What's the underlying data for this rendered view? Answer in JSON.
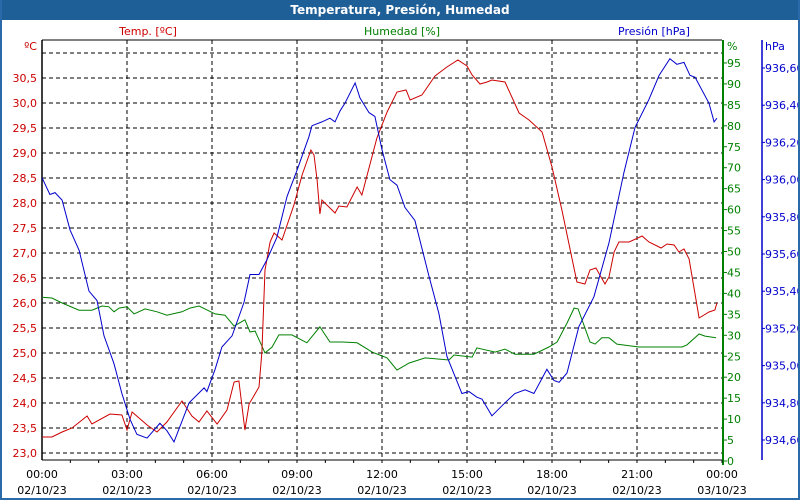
{
  "window": {
    "title": "Temperatura, Presión, Humedad"
  },
  "colors": {
    "temp": "#cc0000",
    "hum": "#008000",
    "pres": "#0000cc",
    "titlebar": "#1f5f97"
  },
  "chart_data": {
    "type": "line",
    "title": "Temperatura, Presión, Humedad",
    "x_unit": "hours since 02/10/23 00:00",
    "xlim": [
      0,
      24
    ],
    "x_ticks": [
      {
        "time": "00:00",
        "date": "02/10/23"
      },
      {
        "time": "03:00",
        "date": "02/10/23"
      },
      {
        "time": "06:00",
        "date": "02/10/23"
      },
      {
        "time": "09:00",
        "date": "02/10/23"
      },
      {
        "time": "12:00",
        "date": "02/10/23"
      },
      {
        "time": "15:00",
        "date": "02/10/23"
      },
      {
        "time": "18:00",
        "date": "02/10/23"
      },
      {
        "time": "21:00",
        "date": "02/10/23"
      },
      {
        "time": "00:00",
        "date": "03/10/23"
      }
    ],
    "axes": {
      "temp": {
        "label": "Temp. [ºC]",
        "unit": "ºC",
        "ticks": [
          "23,0",
          "23,5",
          "24,0",
          "24,5",
          "25,0",
          "25,5",
          "26,0",
          "26,5",
          "27,0",
          "27,5",
          "28,0",
          "28,5",
          "29,0",
          "29,5",
          "30,0",
          "30,5"
        ],
        "range": [
          23.0,
          31.0
        ]
      },
      "hum": {
        "label": "Humedad [%]",
        "unit": "%",
        "ticks": [
          "0",
          "5",
          "10",
          "15",
          "20",
          "25",
          "30",
          "35",
          "40",
          "45",
          "50",
          "55",
          "60",
          "65",
          "70",
          "75",
          "80",
          "85",
          "90",
          "95"
        ],
        "range": [
          0,
          95
        ]
      },
      "pres": {
        "label": "Presión [hPa]",
        "unit": "hPa",
        "ticks": [
          "934,60",
          "934,80",
          "935,00",
          "935,20",
          "935,40",
          "935,60",
          "935,80",
          "936,00",
          "936,20",
          "936,40",
          "936,60"
        ],
        "range": [
          934.6,
          936.6
        ]
      }
    },
    "series": [
      {
        "name": "Temp. [ºC]",
        "axis": "temp",
        "x": [
          0,
          0.35,
          0.71,
          1.06,
          1.59,
          1.76,
          2.4,
          2.82,
          3.0,
          3.18,
          3.71,
          4.06,
          4.41,
          4.94,
          5.29,
          5.54,
          5.82,
          6.18,
          6.53,
          6.78,
          6.95,
          7.16,
          7.31,
          7.66,
          7.76,
          7.87,
          8.05,
          8.19,
          8.47,
          8.89,
          9.18,
          9.49,
          9.6,
          9.71,
          9.81,
          9.88,
          10.34,
          10.48,
          10.76,
          11.12,
          11.29,
          11.82,
          12.18,
          12.53,
          12.85,
          12.99,
          13.41,
          13.87,
          14.29,
          14.68,
          15.0,
          15.18,
          15.46,
          15.71,
          15.88,
          16.34,
          16.84,
          17.19,
          17.65,
          18.0,
          18.35,
          18.88,
          19.16,
          19.34,
          19.55,
          19.87,
          20.01,
          20.19,
          20.36,
          20.72,
          21.18,
          21.42,
          21.85,
          22.06,
          22.31,
          22.48,
          22.66,
          22.84,
          23.19,
          23.54,
          23.75,
          23.82
        ],
        "y": [
          23.32,
          23.32,
          23.42,
          23.5,
          23.74,
          23.58,
          23.78,
          23.76,
          23.46,
          23.82,
          23.56,
          23.42,
          23.62,
          24.04,
          23.74,
          23.62,
          23.84,
          23.58,
          23.86,
          24.42,
          24.44,
          23.46,
          23.98,
          24.32,
          25.02,
          26.66,
          27.22,
          27.4,
          27.26,
          27.96,
          28.56,
          29.06,
          28.96,
          28.46,
          27.78,
          28.06,
          27.8,
          27.94,
          27.92,
          28.32,
          28.16,
          29.3,
          29.82,
          30.22,
          30.26,
          30.06,
          30.16,
          30.54,
          30.72,
          30.86,
          30.74,
          30.56,
          30.38,
          30.42,
          30.46,
          30.42,
          29.8,
          29.66,
          29.42,
          28.72,
          27.86,
          26.42,
          26.38,
          26.66,
          26.7,
          26.38,
          26.52,
          27.02,
          27.22,
          27.22,
          27.34,
          27.22,
          27.1,
          27.18,
          27.16,
          27.02,
          27.08,
          26.88,
          25.7,
          25.82,
          25.86,
          26.0
        ]
      },
      {
        "name": "Humedad [%]",
        "axis": "hum",
        "x": [
          0,
          0.35,
          0.71,
          1.31,
          1.76,
          2.12,
          2.36,
          2.54,
          2.72,
          3.0,
          3.25,
          3.64,
          4.06,
          4.41,
          4.94,
          5.22,
          5.54,
          6.11,
          6.46,
          6.78,
          7.16,
          7.34,
          7.52,
          7.87,
          8.12,
          8.36,
          8.82,
          9.35,
          9.81,
          10.16,
          10.59,
          11.12,
          11.65,
          12.18,
          12.53,
          12.96,
          13.52,
          14.36,
          14.54,
          15.18,
          15.35,
          15.99,
          16.34,
          16.69,
          17.36,
          17.89,
          18.18,
          18.53,
          18.78,
          18.92,
          19.34,
          19.52,
          19.76,
          20.01,
          20.29,
          21.07,
          22.59,
          22.76,
          23.19,
          23.4,
          23.79
        ],
        "y": [
          39.1,
          38.9,
          37.7,
          36.0,
          36.0,
          37.0,
          36.8,
          35.6,
          36.5,
          36.8,
          35.1,
          36.3,
          35.6,
          34.8,
          35.6,
          36.5,
          37.0,
          35.1,
          34.8,
          32.2,
          33.7,
          30.8,
          31.0,
          25.8,
          27.2,
          30.1,
          30.1,
          28.2,
          32.0,
          28.4,
          28.4,
          28.2,
          26.0,
          24.6,
          21.7,
          23.4,
          24.6,
          24.1,
          25.3,
          24.8,
          27.0,
          26.0,
          26.7,
          25.5,
          25.5,
          27.2,
          28.4,
          32.9,
          36.5,
          36.3,
          28.4,
          27.9,
          29.4,
          29.4,
          27.9,
          27.2,
          27.2,
          27.7,
          30.3,
          29.8,
          29.4
        ]
      },
      {
        "name": "Presión [hPa]",
        "axis": "pres",
        "x": [
          0,
          0.28,
          0.46,
          0.71,
          0.99,
          1.31,
          1.66,
          1.94,
          2.19,
          2.54,
          2.82,
          3.11,
          3.35,
          3.71,
          4.16,
          4.41,
          4.66,
          5.19,
          5.72,
          5.82,
          6.11,
          6.35,
          6.71,
          7.13,
          7.34,
          7.66,
          7.94,
          8.29,
          8.65,
          9.0,
          9.42,
          9.53,
          9.88,
          10.16,
          10.34,
          10.52,
          10.69,
          11.05,
          11.22,
          11.54,
          11.75,
          12.0,
          12.28,
          12.53,
          12.81,
          13.16,
          13.66,
          14.01,
          14.29,
          14.82,
          15.07,
          15.35,
          15.53,
          15.88,
          16.34,
          16.69,
          17.05,
          17.36,
          17.82,
          18.07,
          18.25,
          18.53,
          18.95,
          19.48,
          20.01,
          20.54,
          20.93,
          21.42,
          21.78,
          22.16,
          22.41,
          22.66,
          22.87,
          23.05,
          23.54,
          23.72,
          23.82
        ],
        "y": [
          936.01,
          935.92,
          935.93,
          935.89,
          935.73,
          935.62,
          935.4,
          935.35,
          935.16,
          935.01,
          934.85,
          934.71,
          934.63,
          934.61,
          934.69,
          934.65,
          934.59,
          934.8,
          934.88,
          934.86,
          934.98,
          935.1,
          935.16,
          935.34,
          935.49,
          935.49,
          935.57,
          935.69,
          935.91,
          936.05,
          936.23,
          936.29,
          936.31,
          936.33,
          936.31,
          936.37,
          936.41,
          936.52,
          936.44,
          936.36,
          936.34,
          936.16,
          936.0,
          935.97,
          935.85,
          935.78,
          935.48,
          935.28,
          935.05,
          934.85,
          934.86,
          934.83,
          934.82,
          934.73,
          934.8,
          934.85,
          934.87,
          934.85,
          934.98,
          934.92,
          934.91,
          934.96,
          935.21,
          935.37,
          935.66,
          936.04,
          936.28,
          936.43,
          936.56,
          936.65,
          936.62,
          936.63,
          936.56,
          936.55,
          936.41,
          936.31,
          936.33
        ]
      }
    ],
    "grid": true,
    "legend": "axis-titles-top"
  }
}
